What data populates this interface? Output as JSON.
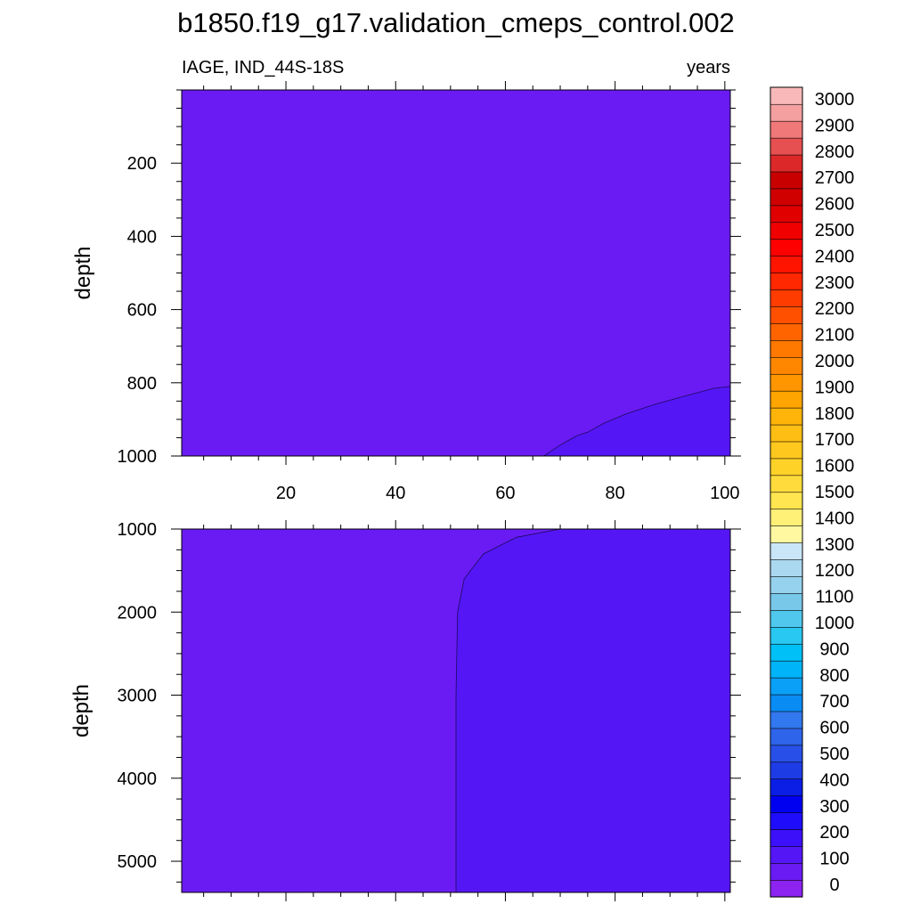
{
  "chart_data": {
    "type": "heatmap",
    "title": "b1850.f19_g17.validation_cmeps_control.002",
    "variable_label": "IAGE, IND_44S-18S",
    "units_label": "years",
    "xlim": [
      1,
      101
    ],
    "x_ticks": [
      20,
      40,
      60,
      80,
      100
    ],
    "panels": [
      {
        "id": "upper",
        "ylabel": "depth",
        "ylim": [
          1000,
          0
        ],
        "y_ticks": [
          200,
          400,
          600,
          800,
          1000
        ],
        "background_level": 0,
        "contour_level": 100,
        "contour_boundary": [
          [
            67,
            1000
          ],
          [
            70,
            970
          ],
          [
            73,
            945
          ],
          [
            75,
            935
          ],
          [
            78,
            910
          ],
          [
            82,
            885
          ],
          [
            87,
            860
          ],
          [
            93,
            835
          ],
          [
            98,
            815
          ],
          [
            101,
            810
          ]
        ],
        "x_tick_labels_visible": true
      },
      {
        "id": "lower",
        "ylabel": "depth",
        "ylim": [
          5375,
          1000
        ],
        "y_ticks": [
          1000,
          2000,
          3000,
          4000,
          5000
        ],
        "background_level": 0,
        "contour_level": 100,
        "contour_boundary": [
          [
            70,
            1000
          ],
          [
            62,
            1100
          ],
          [
            56,
            1300
          ],
          [
            52.5,
            1600
          ],
          [
            51.3,
            2000
          ],
          [
            51,
            3000
          ],
          [
            51,
            5375
          ]
        ],
        "x_tick_labels_visible": false
      }
    ],
    "colorbar": {
      "levels": [
        0,
        100,
        200,
        300,
        400,
        500,
        600,
        700,
        800,
        900,
        1000,
        1100,
        1200,
        1300,
        1400,
        1500,
        1600,
        1700,
        1800,
        1900,
        2000,
        2100,
        2200,
        2300,
        2400,
        2500,
        2600,
        2700,
        2800,
        2900,
        3000
      ],
      "colors": [
        "#8c23f0",
        "#6a1bf3",
        "#5516f6",
        "#3c10f8",
        "#1f0cfa",
        "#0000f0",
        "#0a1ee6",
        "#1e3ce6",
        "#2850e8",
        "#2e64ea",
        "#3278ee",
        "#0a8cf5",
        "#0aa0f8",
        "#00b4fa",
        "#00c0f8",
        "#28c8f2",
        "#50c8ee",
        "#78c8ea",
        "#96d2ee",
        "#aad8f0",
        "#c8e6f8",
        "#fff8a0",
        "#fff078",
        "#ffe650",
        "#ffdc3c",
        "#ffd228",
        "#ffc81e",
        "#ffbe14",
        "#ffb40a",
        "#ffa500",
        "#ff9600",
        "#ff8700",
        "#ff7800",
        "#ff6400",
        "#ff5000",
        "#ff3c00",
        "#ff2800",
        "#ff1400",
        "#ff0000",
        "#f00000",
        "#e00000",
        "#d00000",
        "#c80000",
        "#dc2828",
        "#e65050",
        "#f07878",
        "#f4a0a0",
        "#f8b8b8"
      ]
    }
  }
}
